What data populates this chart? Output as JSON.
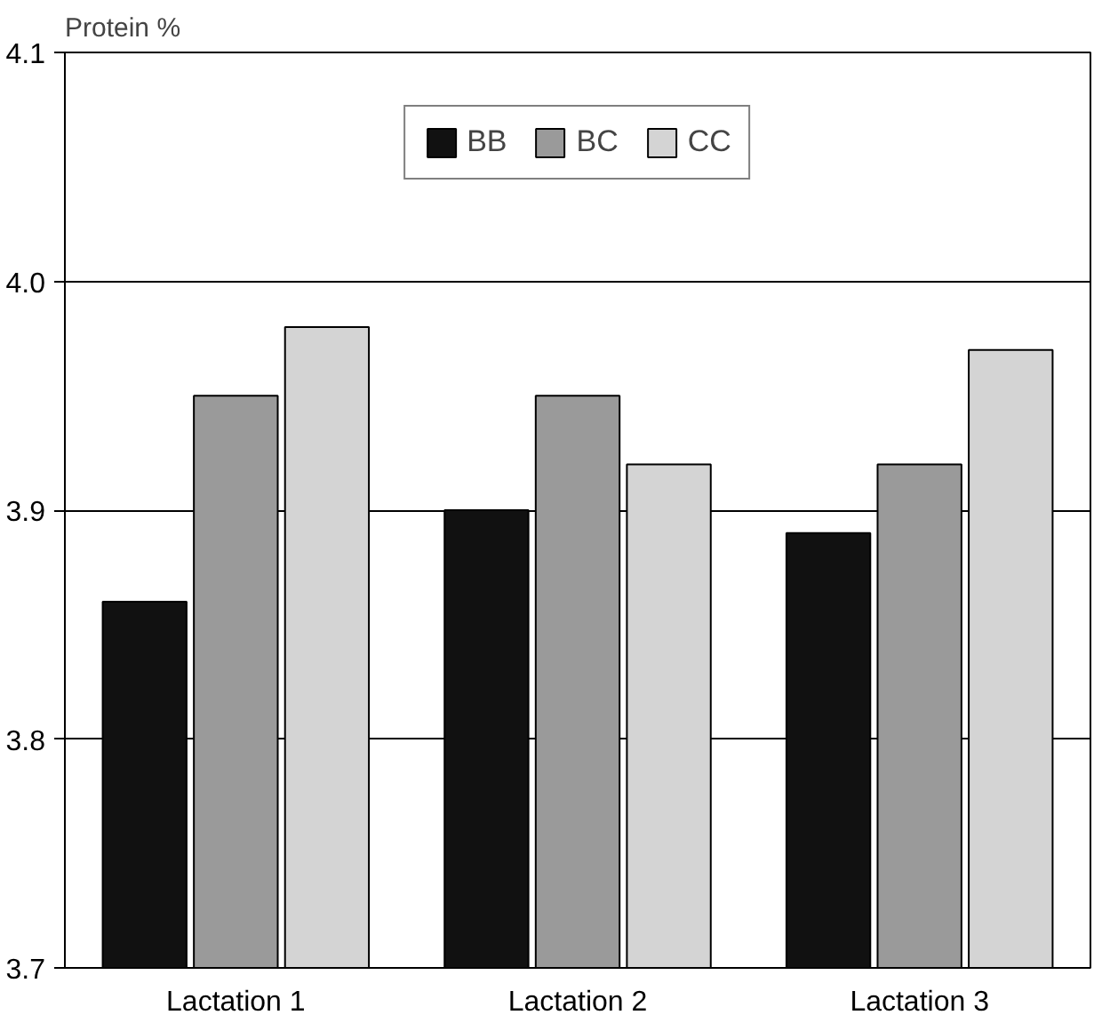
{
  "chart_data": {
    "type": "bar",
    "ylabel": "Protein %",
    "categories": [
      "Lactation 1",
      "Lactation 2",
      "Lactation 3"
    ],
    "series": [
      {
        "name": "BB",
        "color": "#111111",
        "values": [
          3.86,
          3.9,
          3.89
        ]
      },
      {
        "name": "BC",
        "color": "#9a9a9a",
        "values": [
          3.95,
          3.95,
          3.92
        ]
      },
      {
        "name": "CC",
        "color": "#d4d4d4",
        "values": [
          3.98,
          3.92,
          3.97
        ]
      }
    ],
    "ylim": [
      3.7,
      4.1
    ],
    "yticks": [
      3.7,
      3.8,
      3.9,
      {
        "value": 4.0,
        "label": "4.0"
      },
      4.1
    ],
    "grid": "y",
    "legend": "top"
  }
}
